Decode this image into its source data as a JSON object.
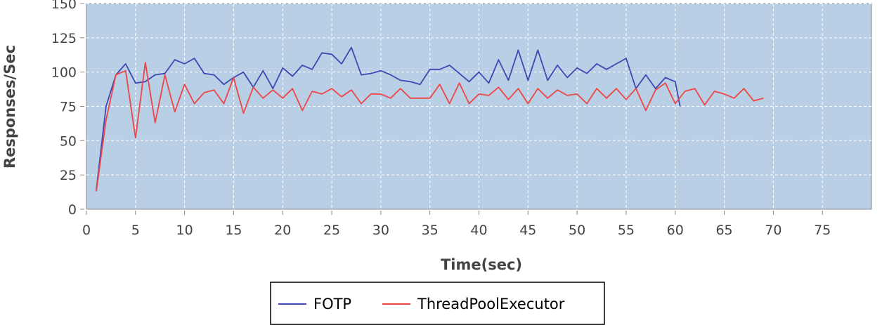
{
  "chart_data": {
    "type": "line",
    "title": "",
    "xlabel": "Time(sec)",
    "ylabel": "Responses/Sec",
    "xlim": [
      0,
      80
    ],
    "ylim": [
      0,
      150
    ],
    "xticks": [
      0,
      5,
      10,
      15,
      20,
      25,
      30,
      35,
      40,
      45,
      50,
      55,
      60,
      65,
      70,
      75
    ],
    "yticks": [
      0,
      25,
      50,
      75,
      100,
      125,
      150
    ],
    "grid": true,
    "legend_position": "bottom-center",
    "plot_background": "#b8cfe5",
    "series": [
      {
        "name": "FOTP",
        "color": "#3f47b4",
        "x": [
          1,
          2,
          3,
          4,
          5,
          6,
          7,
          8,
          9,
          10,
          11,
          12,
          13,
          14,
          15,
          16,
          17,
          18,
          19,
          20,
          21,
          22,
          23,
          24,
          25,
          26,
          27,
          28,
          29,
          30,
          31,
          32,
          33,
          34,
          35,
          36,
          37,
          38,
          39,
          40,
          41,
          42,
          43,
          44,
          45,
          46,
          47,
          48,
          49,
          50,
          51,
          52,
          53,
          54,
          55,
          56,
          57,
          58,
          59,
          60,
          60.5
        ],
        "y": [
          14,
          75,
          98,
          106,
          92,
          93,
          98,
          99,
          109,
          106,
          110,
          99,
          98,
          91,
          96,
          100,
          89,
          101,
          88,
          103,
          97,
          105,
          102,
          114,
          113,
          106,
          118,
          98,
          99,
          101,
          98,
          94,
          93,
          91,
          102,
          102,
          105,
          99,
          93,
          100,
          92,
          109,
          94,
          116,
          94,
          116,
          94,
          105,
          96,
          103,
          99,
          106,
          102,
          106,
          110,
          88,
          98,
          88,
          96,
          93,
          75
        ]
      },
      {
        "name": "ThreadPoolExecutor",
        "color": "#f04545",
        "x": [
          1,
          2,
          3,
          4,
          5,
          6,
          7,
          8,
          9,
          10,
          11,
          12,
          13,
          14,
          15,
          16,
          17,
          18,
          19,
          20,
          21,
          22,
          23,
          24,
          25,
          26,
          27,
          28,
          29,
          30,
          31,
          32,
          33,
          34,
          35,
          36,
          37,
          38,
          39,
          40,
          41,
          42,
          43,
          44,
          45,
          46,
          47,
          48,
          49,
          50,
          51,
          52,
          53,
          54,
          55,
          56,
          57,
          58,
          59,
          60,
          61,
          62,
          63,
          64,
          65,
          66,
          67,
          68,
          69
        ],
        "y": [
          13,
          65,
          98,
          101,
          52,
          107,
          63,
          98,
          71,
          91,
          77,
          85,
          87,
          77,
          96,
          70,
          89,
          81,
          87,
          81,
          88,
          72,
          86,
          84,
          88,
          82,
          87,
          77,
          84,
          84,
          81,
          88,
          81,
          81,
          81,
          91,
          77,
          92,
          77,
          84,
          83,
          89,
          80,
          88,
          77,
          88,
          81,
          87,
          83,
          84,
          77,
          88,
          81,
          88,
          80,
          88,
          72,
          87,
          92,
          77,
          86,
          88,
          76,
          86,
          84,
          81,
          88,
          79,
          81
        ]
      }
    ]
  }
}
